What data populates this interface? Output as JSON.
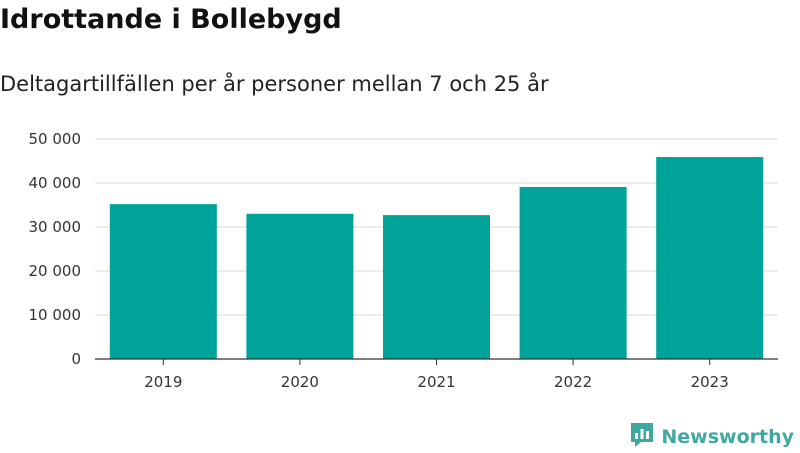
{
  "header": {
    "title": "Idrottande i Bollebygd",
    "subtitle": "Deltagartillfällen per år personer mellan 7 och 25 år"
  },
  "brand": {
    "name": "Newsworthy",
    "icon": "newsworthy-logo-icon",
    "color": "#40a8a2"
  },
  "chart_data": {
    "type": "bar",
    "title": "Idrottande i Bollebygd",
    "subtitle": "Deltagartillfällen per år personer mellan 7 och 25 år",
    "xlabel": "",
    "ylabel": "",
    "categories": [
      "2019",
      "2020",
      "2021",
      "2022",
      "2023"
    ],
    "values": [
      35200,
      33000,
      32700,
      39100,
      45900
    ],
    "ylim": [
      0,
      50000
    ],
    "yticks": [
      0,
      10000,
      20000,
      30000,
      40000,
      50000
    ],
    "ytick_labels": [
      "0",
      "10 000",
      "20 000",
      "30 000",
      "40 000",
      "50 000"
    ],
    "grid": true,
    "bar_color": "#00a39a"
  }
}
